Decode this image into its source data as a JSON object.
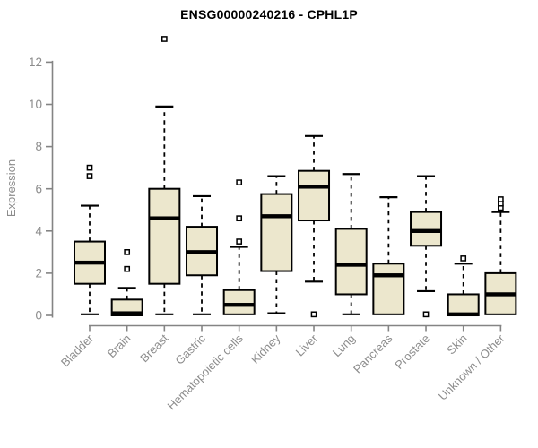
{
  "chart_data": {
    "type": "boxplot",
    "title": "ENSG00000240216 - CPHL1P",
    "ylabel": "Expression",
    "xlabel": "",
    "ylim": [
      0,
      13.4
    ],
    "yticks": [
      0,
      2,
      4,
      6,
      8,
      10,
      12
    ],
    "grid": false,
    "legend": "none",
    "colors": {
      "box_fill": "#ece7cd",
      "box_stroke": "#000000",
      "median": "#000000",
      "whisker": "#000000",
      "outlier_fill": "#ffffff",
      "axis_line": "#848484",
      "tick_label": "#8c8c8c",
      "title": "#000000"
    },
    "categories": [
      "Bladder",
      "Brain",
      "Breast",
      "Gastric",
      "Hematopoietic cells",
      "Kidney",
      "Liver",
      "Lung",
      "Pancreas",
      "Prostate",
      "Skin",
      "Unknown / Other"
    ],
    "series": [
      {
        "name": "Bladder",
        "whisker_low": 0.05,
        "q1": 1.5,
        "median": 2.5,
        "q3": 3.5,
        "whisker_high": 5.2,
        "outliers": [
          6.6,
          7.0
        ]
      },
      {
        "name": "Brain",
        "whisker_low": 0.0,
        "q1": 0.0,
        "median": 0.1,
        "q3": 0.75,
        "whisker_high": 1.3,
        "outliers": [
          2.2,
          3.0
        ]
      },
      {
        "name": "Breast",
        "whisker_low": 0.05,
        "q1": 1.5,
        "median": 4.6,
        "q3": 6.0,
        "whisker_high": 9.9,
        "outliers": [
          13.1
        ]
      },
      {
        "name": "Gastric",
        "whisker_low": 0.05,
        "q1": 1.9,
        "median": 3.0,
        "q3": 4.2,
        "whisker_high": 5.65,
        "outliers": []
      },
      {
        "name": "Hematopoietic cells",
        "whisker_low": 0.05,
        "q1": 0.05,
        "median": 0.5,
        "q3": 1.2,
        "whisker_high": 3.25,
        "outliers": [
          3.5,
          4.6,
          6.3
        ]
      },
      {
        "name": "Kidney",
        "whisker_low": 0.1,
        "q1": 2.1,
        "median": 4.7,
        "q3": 5.75,
        "whisker_high": 6.6,
        "outliers": []
      },
      {
        "name": "Liver",
        "whisker_low": 1.6,
        "q1": 4.5,
        "median": 6.1,
        "q3": 6.85,
        "whisker_high": 8.5,
        "outliers": [
          0.05
        ]
      },
      {
        "name": "Lung",
        "whisker_low": 0.05,
        "q1": 1.0,
        "median": 2.4,
        "q3": 4.1,
        "whisker_high": 6.7,
        "outliers": []
      },
      {
        "name": "Pancreas",
        "whisker_low": 0.05,
        "q1": 0.05,
        "median": 1.9,
        "q3": 2.45,
        "whisker_high": 5.6,
        "outliers": []
      },
      {
        "name": "Prostate",
        "whisker_low": 1.15,
        "q1": 3.3,
        "median": 4.0,
        "q3": 4.9,
        "whisker_high": 6.6,
        "outliers": [
          0.05
        ]
      },
      {
        "name": "Skin",
        "whisker_low": 0.0,
        "q1": 0.0,
        "median": 0.05,
        "q3": 1.0,
        "whisker_high": 2.45,
        "outliers": [
          2.7
        ]
      },
      {
        "name": "Unknown / Other",
        "whisker_low": 0.05,
        "q1": 0.05,
        "median": 1.0,
        "q3": 2.0,
        "whisker_high": 4.9,
        "outliers": [
          5.1,
          5.3,
          5.5
        ]
      }
    ]
  }
}
